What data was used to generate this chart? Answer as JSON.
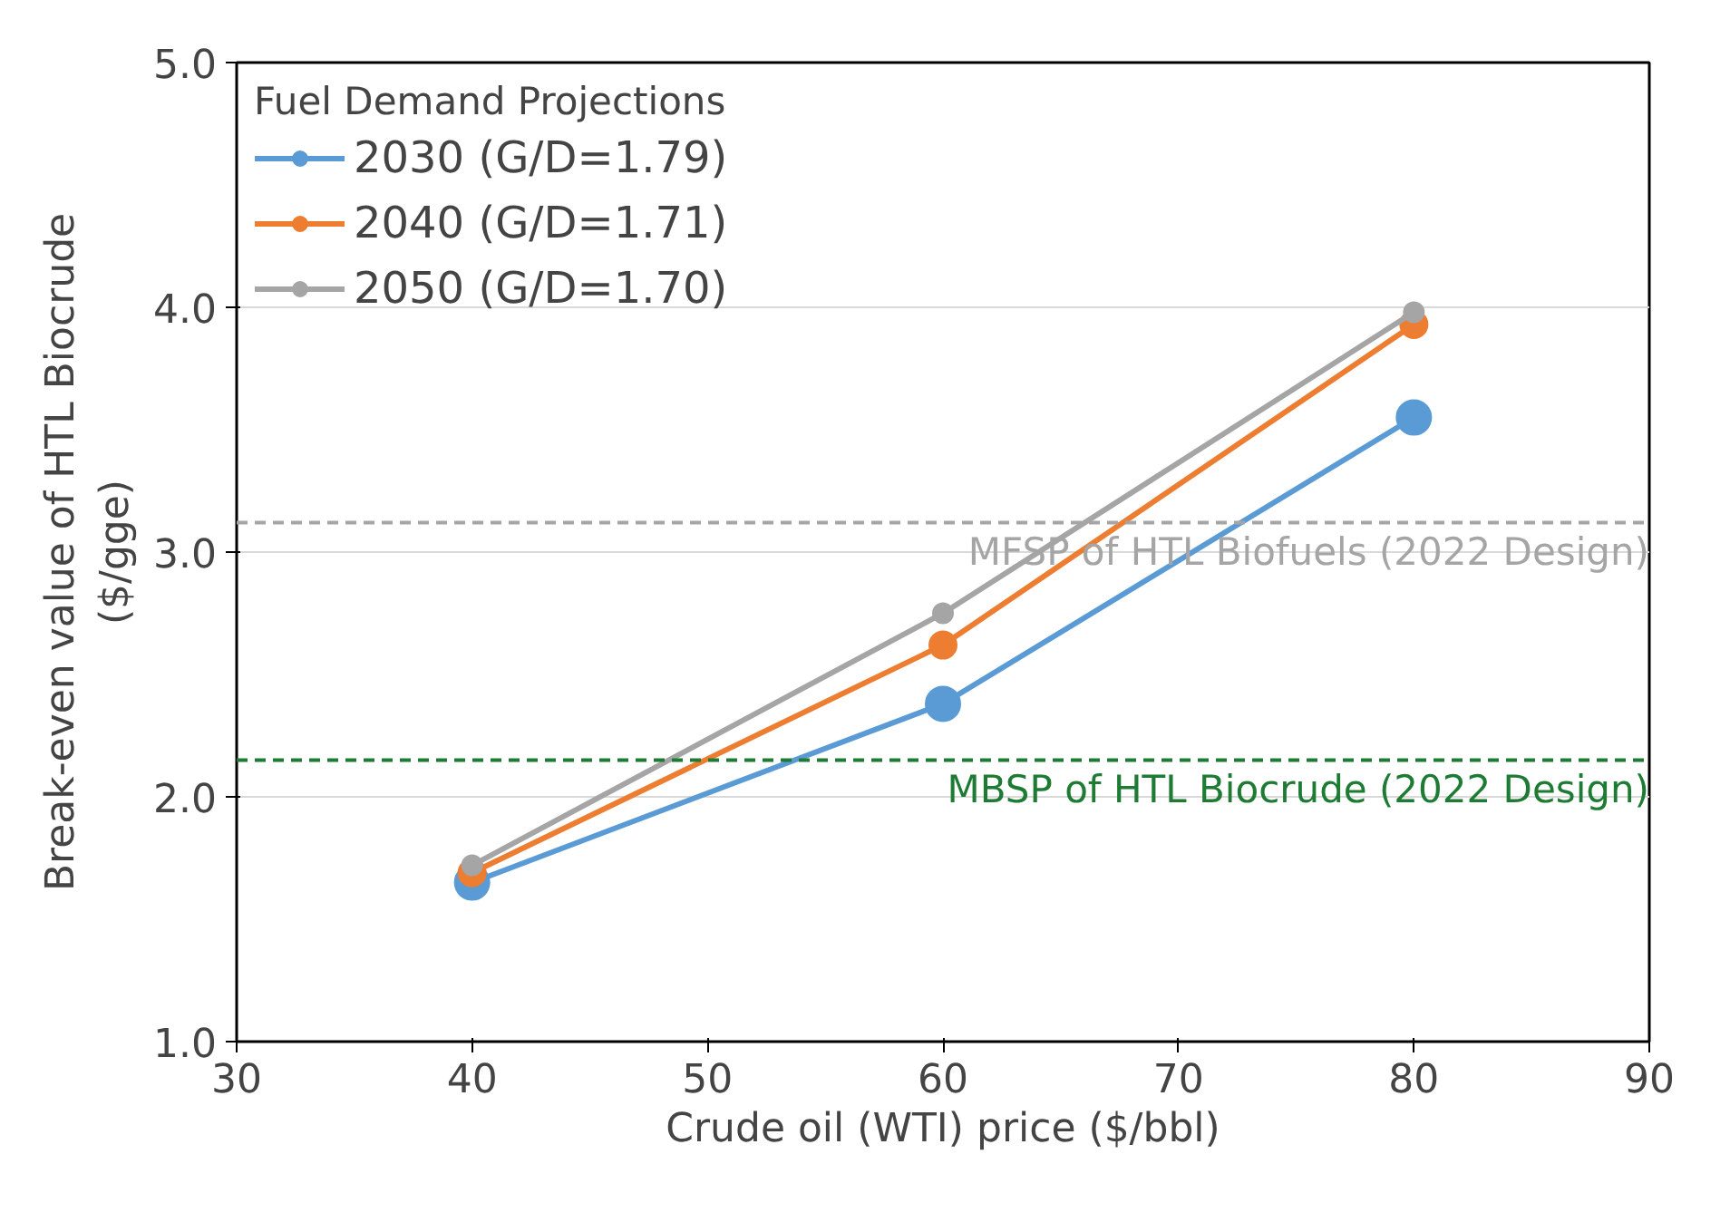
{
  "chart_data": {
    "type": "line",
    "xlabel": "Crude oil (WTI) price ($/bbl)",
    "ylabel": "Break-even value of HTL Biocrude\n($/gge)",
    "legend_title": "Fuel Demand Projections",
    "x": [
      40,
      60,
      80
    ],
    "series": [
      {
        "name": "2030 (G/D=1.79)",
        "color": "#5b9bd5",
        "values": [
          1.65,
          2.38,
          3.55
        ]
      },
      {
        "name": "2040 (G/D=1.71)",
        "color": "#ed7d31",
        "values": [
          1.69,
          2.62,
          3.93
        ]
      },
      {
        "name": "2050 (G/D=1.70)",
        "color": "#a5a5a5",
        "values": [
          1.72,
          2.75,
          3.98
        ]
      }
    ],
    "xlim": [
      30,
      90
    ],
    "xticks": [
      30,
      40,
      50,
      60,
      70,
      80,
      90
    ],
    "ylim": [
      1.0,
      5.0
    ],
    "yticks": [
      {
        "value": 1.0,
        "label": "1.0"
      },
      {
        "value": 2.0,
        "label": "2.0"
      },
      {
        "value": 3.0,
        "label": "3.0"
      },
      {
        "value": 4.0,
        "label": "4.0"
      },
      {
        "value": 5.0,
        "label": "5.0"
      }
    ],
    "ref_lines": [
      {
        "axis": "y",
        "value": 3.12,
        "label": "MFSP of HTL Biofuels (2022 Design)",
        "color": "#a5a5a5",
        "line_style": "dashed"
      },
      {
        "axis": "y",
        "value": 2.15,
        "label": "MBSP of HTL Biocrude (2022 Design)",
        "color": "#1e7b34",
        "line_style": "dashed"
      }
    ],
    "grid": "y",
    "legend": "top left",
    "marker": "circle",
    "line_style": "solid"
  }
}
